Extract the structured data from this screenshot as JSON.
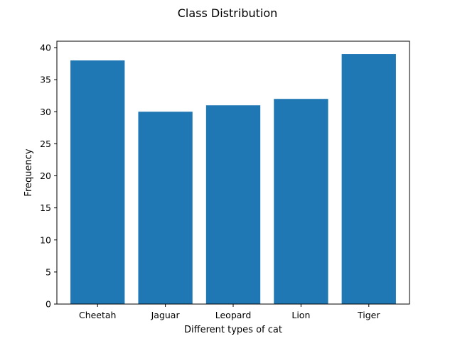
{
  "chart_data": {
    "type": "bar",
    "title": "Class Distribution",
    "xlabel": "Different types of cat",
    "ylabel": "Frequency",
    "categories": [
      "Cheetah",
      "Jaguar",
      "Leopard",
      "Lion",
      "Tiger"
    ],
    "values": [
      38,
      30,
      31,
      32,
      39
    ],
    "ylim": [
      0,
      41
    ],
    "yticks": [
      0,
      5,
      10,
      15,
      20,
      25,
      30,
      35,
      40
    ],
    "grid": false,
    "bar_color": "#1f77b4"
  }
}
